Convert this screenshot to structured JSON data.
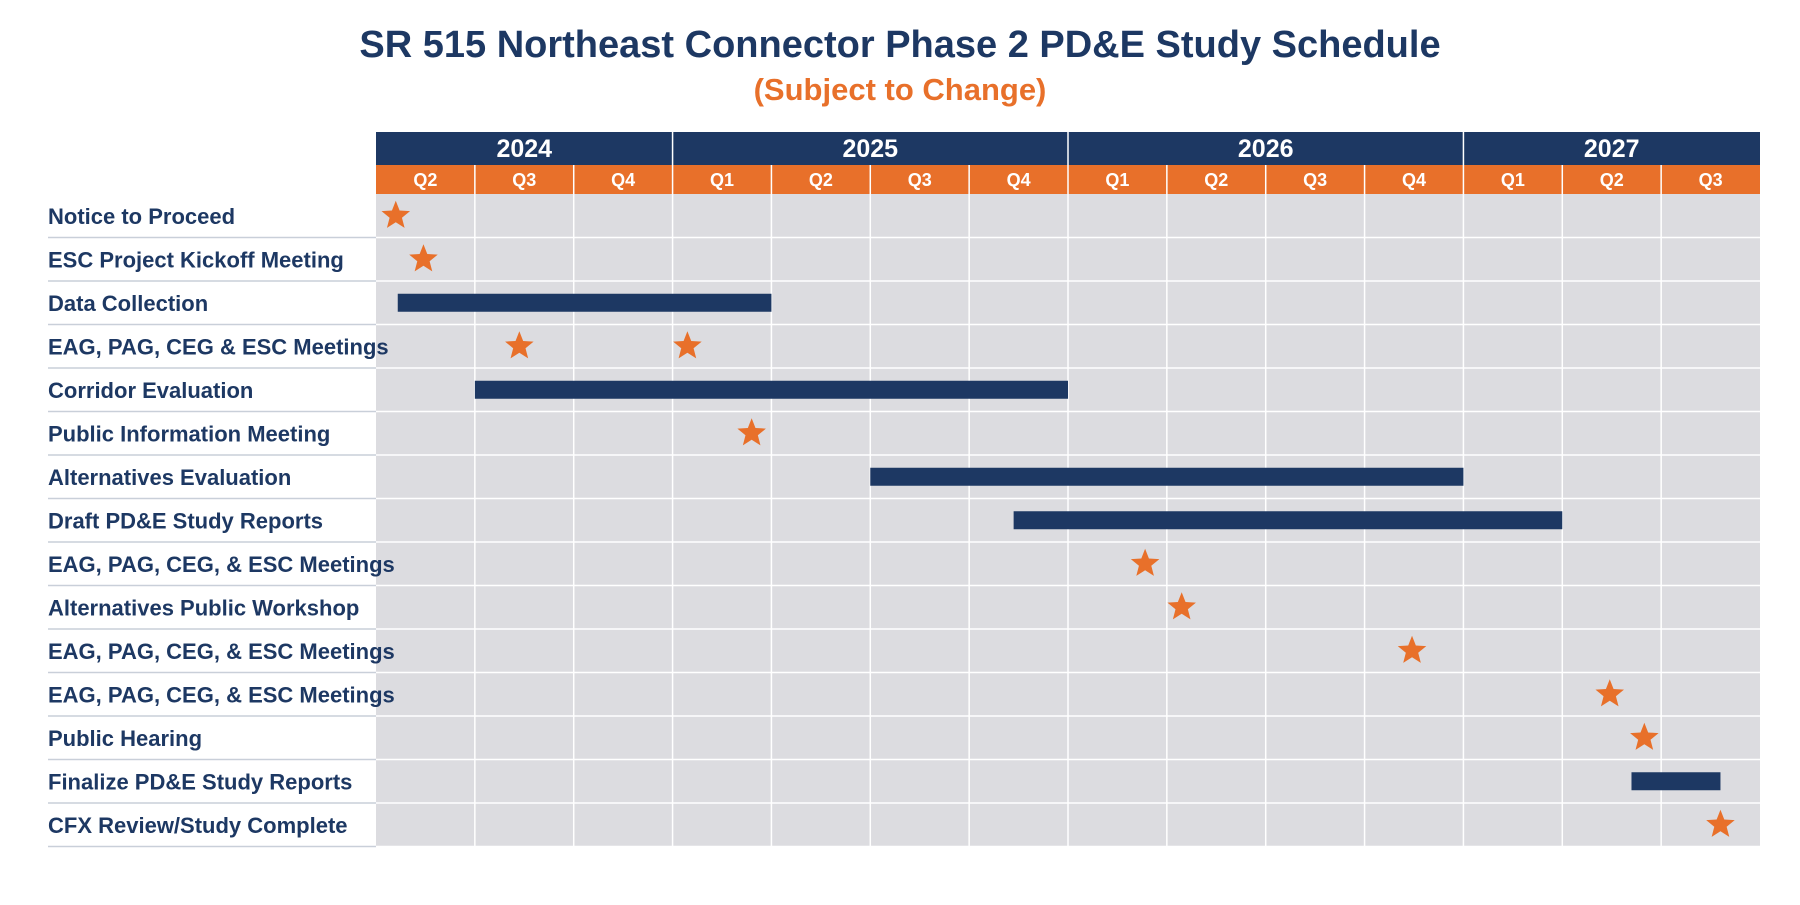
{
  "title": "SR 515 Northeast Connector Phase 2 PD&E Study Schedule",
  "subtitle": "(Subject to Change)",
  "colors": {
    "navy": "#1d3863",
    "orange": "#e8702a",
    "grid_bg": "#dcdce0",
    "grid_line": "#ffffff",
    "row_line": "#c9cfd9"
  },
  "chart_data": {
    "type": "gantt",
    "years": [
      {
        "label": "2024",
        "quarters": 3
      },
      {
        "label": "2025",
        "quarters": 4
      },
      {
        "label": "2026",
        "quarters": 4
      },
      {
        "label": "2027",
        "quarters": 3
      }
    ],
    "quarters": [
      "Q2",
      "Q3",
      "Q4",
      "Q1",
      "Q2",
      "Q3",
      "Q4",
      "Q1",
      "Q2",
      "Q3",
      "Q4",
      "Q1",
      "Q2",
      "Q3"
    ],
    "time_unit": "quarter index from start of 2024 Q2",
    "tasks": [
      {
        "name": "Notice to Proceed",
        "type": "milestone",
        "at": [
          0.2
        ]
      },
      {
        "name": "ESC Project Kickoff Meeting",
        "type": "milestone",
        "at": [
          0.48
        ]
      },
      {
        "name": "Data Collection",
        "type": "bar",
        "start": 0.22,
        "end": 4.0
      },
      {
        "name": "EAG, PAG, CEG & ESC  Meetings",
        "type": "milestone",
        "at": [
          1.45,
          3.15
        ]
      },
      {
        "name": "Corridor Evaluation",
        "type": "bar",
        "start": 1.0,
        "end": 7.0
      },
      {
        "name": "Public Information Meeting",
        "type": "milestone",
        "at": [
          3.8
        ]
      },
      {
        "name": "Alternatives Evaluation",
        "type": "bar",
        "start": 5.0,
        "end": 11.0
      },
      {
        "name": "Draft PD&E Study Reports",
        "type": "bar",
        "start": 6.45,
        "end": 12.0
      },
      {
        "name": "EAG, PAG, CEG, & ESC Meetings",
        "type": "milestone",
        "at": [
          7.78
        ]
      },
      {
        "name": "Alternatives Public Workshop",
        "type": "milestone",
        "at": [
          8.15
        ]
      },
      {
        "name": "EAG, PAG, CEG, & ESC Meetings",
        "type": "milestone",
        "at": [
          10.48
        ]
      },
      {
        "name": "EAG, PAG, CEG, & ESC Meetings",
        "type": "milestone",
        "at": [
          12.48
        ]
      },
      {
        "name": "Public Hearing",
        "type": "milestone",
        "at": [
          12.83
        ]
      },
      {
        "name": "Finalize PD&E Study Reports",
        "type": "bar",
        "start": 12.7,
        "end": 13.6
      },
      {
        "name": "CFX Review/Study Complete",
        "type": "milestone",
        "at": [
          13.6
        ]
      }
    ]
  }
}
